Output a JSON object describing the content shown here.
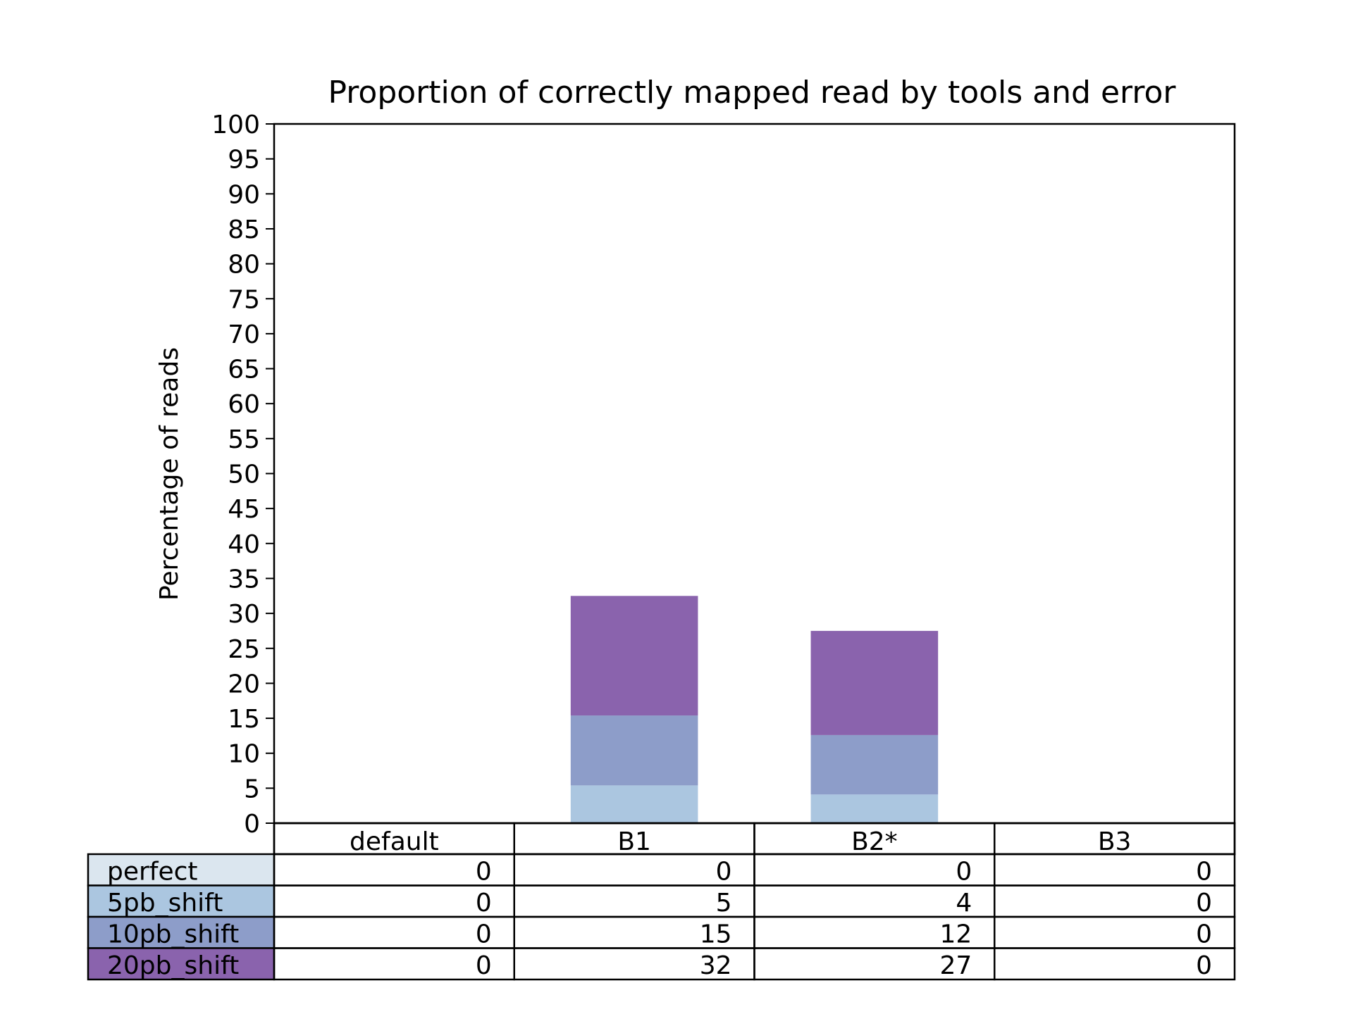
{
  "chart_data": {
    "type": "bar",
    "stacked": true,
    "title": "Proportion of correctly mapped read by tools and error",
    "xlabel": "",
    "ylabel": "Percentage of reads",
    "ylim": [
      0,
      100
    ],
    "ytick_step": 5,
    "grid": false,
    "categories": [
      "default",
      "B1",
      "B2*",
      "B3"
    ],
    "series": [
      {
        "name": "perfect",
        "color": "#dbe6ef",
        "values": [
          0,
          0,
          0,
          0
        ]
      },
      {
        "name": "5pb_shift",
        "color": "#abc6e0",
        "values": [
          0,
          5,
          4,
          0
        ]
      },
      {
        "name": "10pb_shift",
        "color": "#8d9dc9",
        "values": [
          0,
          15,
          12,
          0
        ]
      },
      {
        "name": "20pb_shift",
        "color": "#8a63ad",
        "values": [
          0,
          32,
          27,
          0
        ]
      }
    ],
    "stack_tops": [
      [
        0,
        0,
        0,
        0
      ],
      [
        0,
        5.4,
        4.1,
        0
      ],
      [
        0,
        15.4,
        12.6,
        0
      ],
      [
        0,
        32.5,
        27.5,
        0
      ]
    ],
    "legend_placement": "table-rows-below-axes"
  }
}
